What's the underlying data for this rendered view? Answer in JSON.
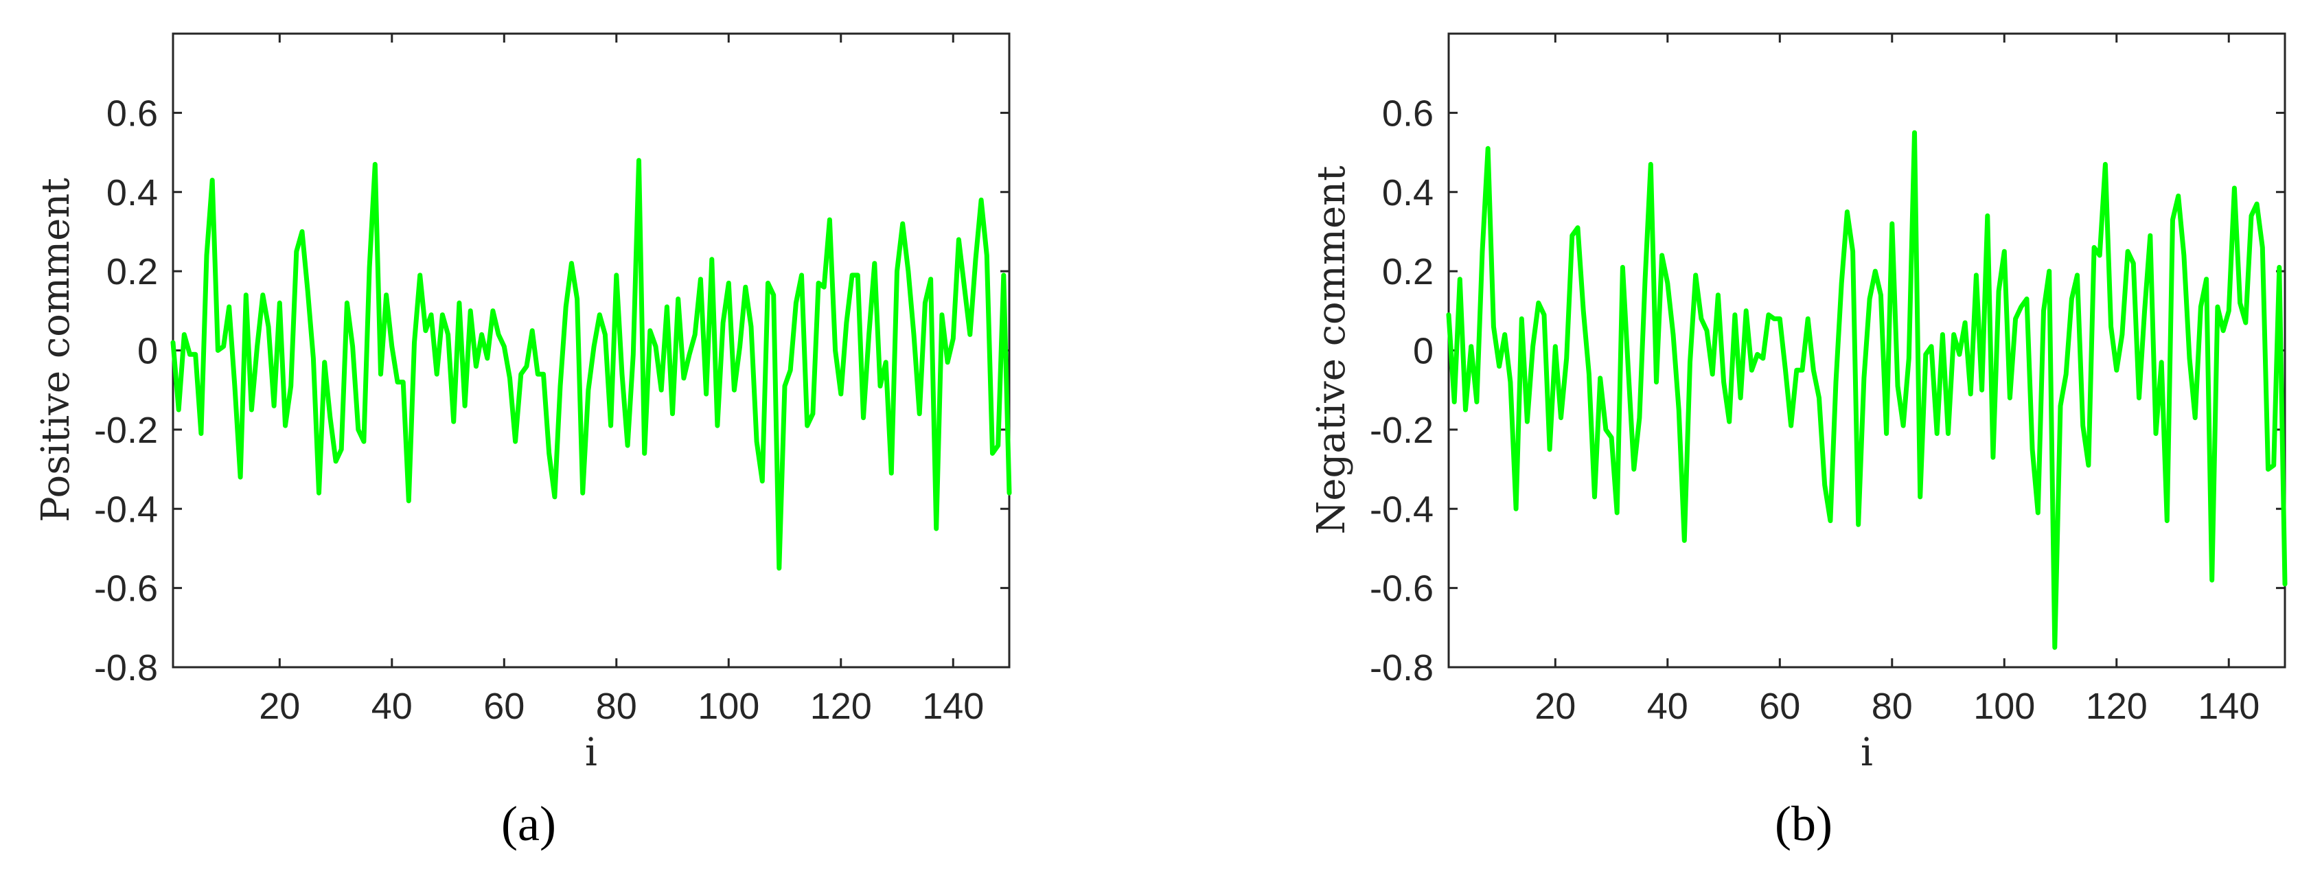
{
  "figure": {
    "panels": [
      {
        "id": "a",
        "label": "(a)",
        "ylabel": "Positive comment",
        "xlabel": "i"
      },
      {
        "id": "b",
        "label": "(b)",
        "ylabel": "Negative comment",
        "xlabel": "i"
      }
    ],
    "line_color": "#00FF00",
    "axis_color": "#262626"
  },
  "chart_data": [
    {
      "type": "line",
      "title": "",
      "panel_label": "(a)",
      "xlabel": "i",
      "ylabel": "Positive comment",
      "xlim": [
        1,
        150
      ],
      "ylim": [
        -0.8,
        0.8
      ],
      "xticks": [
        20,
        40,
        60,
        80,
        100,
        120,
        140
      ],
      "yticks": [
        0.6,
        0.4,
        0.2,
        0,
        -0.2,
        -0.4,
        -0.6,
        -0.8
      ],
      "ytick_labels": [
        "0.6",
        "0.4",
        "0.2",
        "0",
        "-0.2",
        "-0.4",
        "-0.6",
        "-0.8"
      ],
      "grid": false,
      "legend": null,
      "series": [
        {
          "name": "Positive comment",
          "color": "#00FF00",
          "x_start": 1,
          "values": [
            0.02,
            -0.15,
            0.04,
            -0.01,
            -0.01,
            -0.21,
            0.24,
            0.43,
            0.0,
            0.01,
            0.11,
            -0.09,
            -0.32,
            0.14,
            -0.15,
            0.01,
            0.14,
            0.06,
            -0.14,
            0.12,
            -0.19,
            -0.09,
            0.25,
            0.3,
            0.15,
            -0.02,
            -0.36,
            -0.03,
            -0.17,
            -0.28,
            -0.25,
            0.12,
            0.01,
            -0.2,
            -0.23,
            0.21,
            0.47,
            -0.06,
            0.14,
            0.01,
            -0.08,
            -0.08,
            -0.38,
            0.02,
            0.19,
            0.05,
            0.09,
            -0.06,
            0.09,
            0.04,
            -0.18,
            0.12,
            -0.14,
            0.1,
            -0.04,
            0.04,
            -0.02,
            0.1,
            0.04,
            0.01,
            -0.07,
            -0.23,
            -0.06,
            -0.04,
            0.05,
            -0.06,
            -0.06,
            -0.26,
            -0.37,
            -0.09,
            0.11,
            0.22,
            0.13,
            -0.36,
            -0.1,
            0.01,
            0.09,
            0.04,
            -0.19,
            0.19,
            -0.06,
            -0.24,
            -0.01,
            0.48,
            -0.26,
            0.05,
            0.01,
            -0.1,
            0.11,
            -0.16,
            0.13,
            -0.07,
            -0.01,
            0.04,
            0.18,
            -0.11,
            0.23,
            -0.19,
            0.07,
            0.17,
            -0.1,
            0.01,
            0.16,
            0.06,
            -0.23,
            -0.33,
            0.17,
            0.14,
            -0.55,
            -0.09,
            -0.05,
            0.12,
            0.19,
            -0.19,
            -0.16,
            0.17,
            0.16,
            0.33,
            0.0,
            -0.11,
            0.07,
            0.19,
            0.19,
            -0.17,
            0.04,
            0.22,
            -0.09,
            -0.03,
            -0.31,
            0.2,
            0.32,
            0.2,
            0.04,
            -0.16,
            0.12,
            0.18,
            -0.45,
            0.09,
            -0.03,
            0.03,
            0.28,
            0.16,
            0.04,
            0.23,
            0.38,
            0.24,
            -0.26,
            -0.24,
            0.19,
            -0.36
          ]
        }
      ]
    },
    {
      "type": "line",
      "title": "",
      "panel_label": "(b)",
      "xlabel": "i",
      "ylabel": "Negative comment",
      "xlim": [
        1,
        150
      ],
      "ylim": [
        -0.8,
        0.8
      ],
      "xticks": [
        20,
        40,
        60,
        80,
        100,
        120,
        140
      ],
      "yticks": [
        0.6,
        0.4,
        0.2,
        0,
        -0.2,
        -0.4,
        -0.6,
        -0.8
      ],
      "ytick_labels": [
        "0.6",
        "0.4",
        "0.2",
        "0",
        "-0.2",
        "-0.4",
        "-0.6",
        "-0.8"
      ],
      "grid": false,
      "legend": null,
      "series": [
        {
          "name": "Negative comment",
          "color": "#00FF00",
          "x_start": 1,
          "values": [
            0.09,
            -0.13,
            0.18,
            -0.15,
            0.01,
            -0.13,
            0.25,
            0.51,
            0.06,
            -0.04,
            0.04,
            -0.08,
            -0.4,
            0.08,
            -0.18,
            0.01,
            0.12,
            0.09,
            -0.25,
            0.01,
            -0.17,
            -0.02,
            0.29,
            0.31,
            0.1,
            -0.06,
            -0.37,
            -0.07,
            -0.2,
            -0.22,
            -0.41,
            0.21,
            -0.05,
            -0.3,
            -0.17,
            0.18,
            0.47,
            -0.08,
            0.24,
            0.17,
            0.04,
            -0.15,
            -0.48,
            -0.03,
            0.19,
            0.08,
            0.05,
            -0.06,
            0.14,
            -0.08,
            -0.18,
            0.09,
            -0.12,
            0.1,
            -0.05,
            -0.01,
            -0.02,
            0.09,
            0.08,
            0.08,
            -0.05,
            -0.19,
            -0.05,
            -0.05,
            0.08,
            -0.05,
            -0.12,
            -0.34,
            -0.43,
            -0.08,
            0.17,
            0.35,
            0.25,
            -0.44,
            -0.07,
            0.13,
            0.2,
            0.14,
            -0.21,
            0.32,
            -0.09,
            -0.19,
            -0.02,
            0.55,
            -0.37,
            -0.01,
            0.01,
            -0.21,
            0.04,
            -0.21,
            0.04,
            -0.01,
            0.07,
            -0.11,
            0.19,
            -0.1,
            0.34,
            -0.27,
            0.15,
            0.25,
            -0.12,
            0.08,
            0.11,
            0.13,
            -0.25,
            -0.41,
            0.1,
            0.2,
            -0.75,
            -0.14,
            -0.06,
            0.13,
            0.19,
            -0.19,
            -0.29,
            0.26,
            0.24,
            0.47,
            0.06,
            -0.05,
            0.04,
            0.25,
            0.22,
            -0.12,
            0.1,
            0.29,
            -0.21,
            -0.03,
            -0.43,
            0.33,
            0.39,
            0.24,
            -0.02,
            -0.17,
            0.11,
            0.18,
            -0.58,
            0.11,
            0.05,
            0.1,
            0.41,
            0.12,
            0.07,
            0.34,
            0.37,
            0.26,
            -0.3,
            -0.29,
            0.21,
            -0.59
          ]
        }
      ]
    }
  ]
}
